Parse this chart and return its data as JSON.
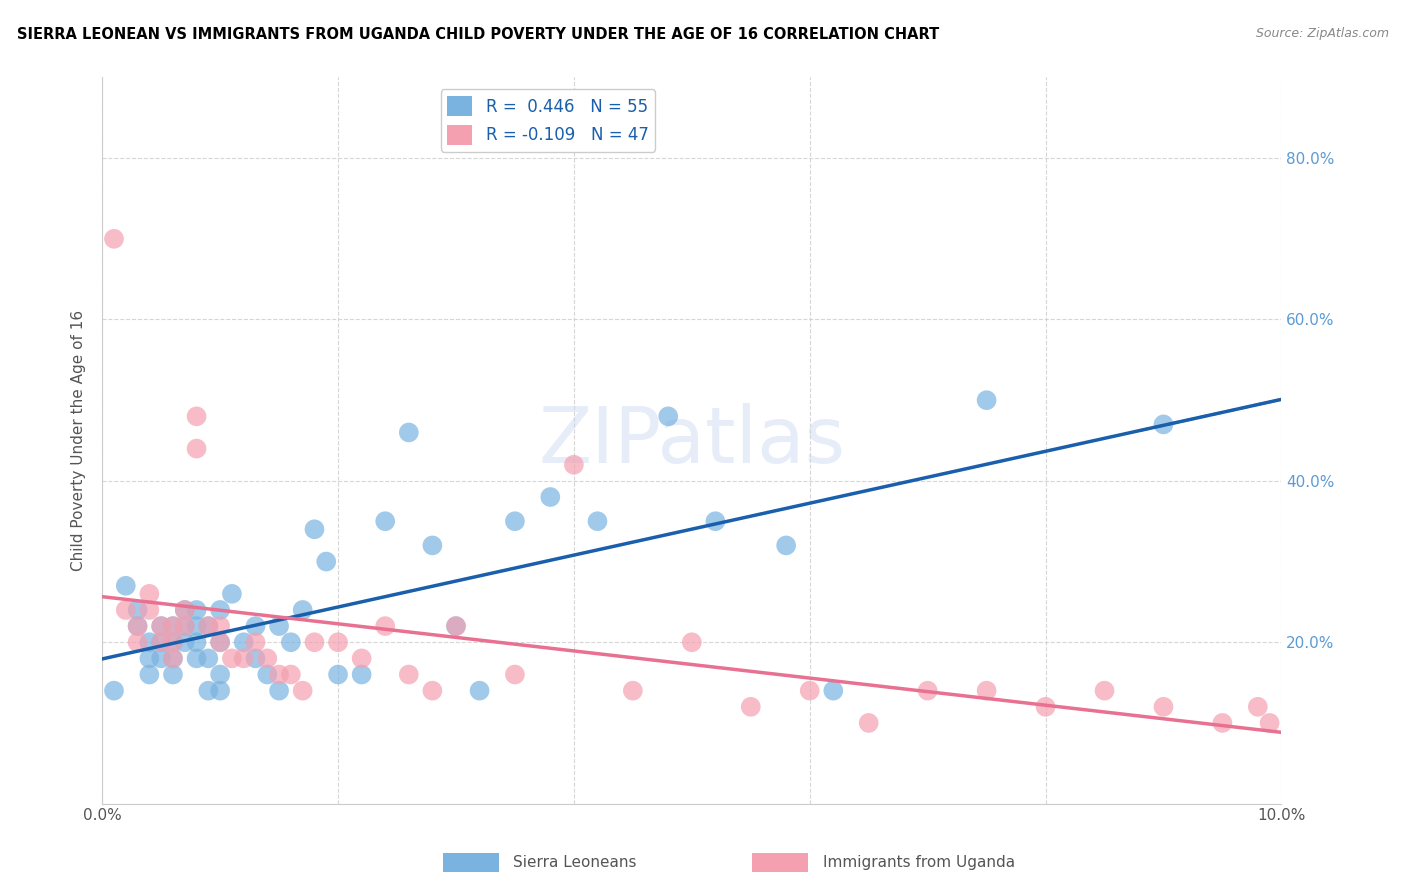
{
  "title": "SIERRA LEONEAN VS IMMIGRANTS FROM UGANDA CHILD POVERTY UNDER THE AGE OF 16 CORRELATION CHART",
  "source": "Source: ZipAtlas.com",
  "ylabel": "Child Poverty Under the Age of 16",
  "xlim": [
    0.0,
    0.1
  ],
  "ylim": [
    0.0,
    0.9
  ],
  "sierra_r": 0.446,
  "sierra_n": 55,
  "uganda_r": -0.109,
  "uganda_n": 47,
  "sierra_color": "#7ab3e0",
  "uganda_color": "#f4a0b0",
  "sierra_line_color": "#1a5fac",
  "uganda_line_color": "#e87090",
  "watermark": "ZIPatlas",
  "sierra_x": [
    0.001,
    0.002,
    0.003,
    0.003,
    0.004,
    0.004,
    0.004,
    0.005,
    0.005,
    0.005,
    0.006,
    0.006,
    0.006,
    0.006,
    0.007,
    0.007,
    0.007,
    0.008,
    0.008,
    0.008,
    0.008,
    0.009,
    0.009,
    0.009,
    0.01,
    0.01,
    0.01,
    0.01,
    0.011,
    0.012,
    0.013,
    0.013,
    0.014,
    0.015,
    0.015,
    0.016,
    0.017,
    0.018,
    0.019,
    0.02,
    0.022,
    0.024,
    0.026,
    0.028,
    0.03,
    0.032,
    0.035,
    0.038,
    0.042,
    0.048,
    0.052,
    0.058,
    0.062,
    0.075,
    0.09
  ],
  "sierra_y": [
    0.14,
    0.27,
    0.24,
    0.22,
    0.2,
    0.18,
    0.16,
    0.22,
    0.2,
    0.18,
    0.22,
    0.2,
    0.18,
    0.16,
    0.24,
    0.22,
    0.2,
    0.24,
    0.22,
    0.2,
    0.18,
    0.22,
    0.18,
    0.14,
    0.24,
    0.2,
    0.16,
    0.14,
    0.26,
    0.2,
    0.22,
    0.18,
    0.16,
    0.22,
    0.14,
    0.2,
    0.24,
    0.34,
    0.3,
    0.16,
    0.16,
    0.35,
    0.46,
    0.32,
    0.22,
    0.14,
    0.35,
    0.38,
    0.35,
    0.48,
    0.35,
    0.32,
    0.14,
    0.5,
    0.47
  ],
  "uganda_x": [
    0.001,
    0.002,
    0.003,
    0.003,
    0.004,
    0.004,
    0.005,
    0.005,
    0.006,
    0.006,
    0.006,
    0.007,
    0.007,
    0.008,
    0.008,
    0.009,
    0.01,
    0.01,
    0.011,
    0.012,
    0.013,
    0.014,
    0.015,
    0.016,
    0.017,
    0.018,
    0.02,
    0.022,
    0.024,
    0.026,
    0.028,
    0.03,
    0.035,
    0.04,
    0.045,
    0.05,
    0.055,
    0.06,
    0.065,
    0.07,
    0.075,
    0.08,
    0.085,
    0.09,
    0.095,
    0.098,
    0.099
  ],
  "uganda_y": [
    0.7,
    0.24,
    0.22,
    0.2,
    0.26,
    0.24,
    0.22,
    0.2,
    0.22,
    0.2,
    0.18,
    0.24,
    0.22,
    0.48,
    0.44,
    0.22,
    0.22,
    0.2,
    0.18,
    0.18,
    0.2,
    0.18,
    0.16,
    0.16,
    0.14,
    0.2,
    0.2,
    0.18,
    0.22,
    0.16,
    0.14,
    0.22,
    0.16,
    0.42,
    0.14,
    0.2,
    0.12,
    0.14,
    0.1,
    0.14,
    0.14,
    0.12,
    0.14,
    0.12,
    0.1,
    0.12,
    0.1
  ]
}
